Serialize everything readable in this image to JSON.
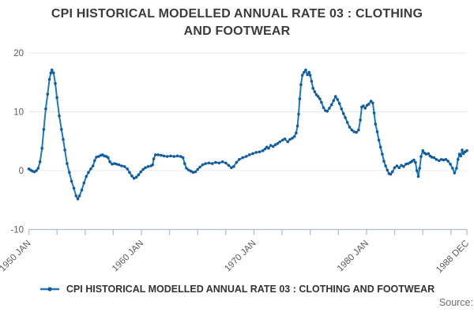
{
  "page": {
    "title": "CPI HISTORICAL MODELLED ANNUAL RATE 03 : CLOTHING AND FOOTWEAR",
    "source_label": "Source:"
  },
  "legend": {
    "label": "CPI HISTORICAL MODELLED ANNUAL RATE 03 : CLOTHING AND FOOTWEAR"
  },
  "colors": {
    "line": "#1e79b9",
    "marker": "#135c99",
    "grid": "#e8e8e8",
    "axis": "#b0bdd6",
    "tick_text": "#595959",
    "title_text": "#3b3b3b"
  },
  "chart_data": {
    "type": "line",
    "title": "CPI HISTORICAL MODELLED ANNUAL RATE 03 : CLOTHING AND FOOTWEAR",
    "xlabel": "",
    "ylabel": "",
    "unit": "percent, annual rate",
    "x_range": [
      1950.0,
      1988.92
    ],
    "ylim": [
      -10,
      20
    ],
    "y_ticks": [
      -10,
      0,
      10,
      20
    ],
    "y_gridlines": [
      0,
      10,
      20
    ],
    "x_tick_interval_years": 2.5,
    "x_tick_labels": [
      {
        "t": 1950.0,
        "label": "1950 JAN"
      },
      {
        "t": 1960.0,
        "label": "1960 JAN"
      },
      {
        "t": 1970.0,
        "label": "1970 JAN"
      },
      {
        "t": 1980.0,
        "label": "1980 JAN"
      },
      {
        "t": 1988.92,
        "label": "1988 DEC"
      }
    ],
    "legend_position": "bottom",
    "grid": true,
    "series": [
      {
        "name": "CPI HISTORICAL MODELLED ANNUAL RATE 03 : CLOTHING AND FOOTWEAR",
        "points": [
          [
            1950.0,
            0.3
          ],
          [
            1950.17,
            0.1
          ],
          [
            1950.33,
            -0.1
          ],
          [
            1950.5,
            -0.2
          ],
          [
            1950.67,
            0.0
          ],
          [
            1950.83,
            0.4
          ],
          [
            1951.0,
            1.5
          ],
          [
            1951.17,
            3.8
          ],
          [
            1951.33,
            7.0
          ],
          [
            1951.5,
            10.5
          ],
          [
            1951.67,
            13.0
          ],
          [
            1951.83,
            15.5
          ],
          [
            1951.95,
            16.6
          ],
          [
            1952.05,
            17.1
          ],
          [
            1952.2,
            16.6
          ],
          [
            1952.35,
            14.8
          ],
          [
            1952.5,
            12.4
          ],
          [
            1952.7,
            9.3
          ],
          [
            1952.9,
            7.0
          ],
          [
            1953.05,
            5.3
          ],
          [
            1953.2,
            3.5
          ],
          [
            1953.4,
            1.2
          ],
          [
            1953.6,
            -0.3
          ],
          [
            1953.8,
            -1.8
          ],
          [
            1954.0,
            -3.0
          ],
          [
            1954.2,
            -4.3
          ],
          [
            1954.35,
            -4.8
          ],
          [
            1954.5,
            -4.3
          ],
          [
            1954.7,
            -3.3
          ],
          [
            1954.9,
            -2.1
          ],
          [
            1955.1,
            -1.0
          ],
          [
            1955.3,
            -0.3
          ],
          [
            1955.5,
            0.3
          ],
          [
            1955.7,
            0.8
          ],
          [
            1955.85,
            1.7
          ],
          [
            1956.0,
            2.3
          ],
          [
            1956.2,
            2.4
          ],
          [
            1956.4,
            2.6
          ],
          [
            1956.55,
            2.7
          ],
          [
            1956.7,
            2.5
          ],
          [
            1956.9,
            2.4
          ],
          [
            1957.05,
            2.2
          ],
          [
            1957.2,
            1.5
          ],
          [
            1957.4,
            1.1
          ],
          [
            1957.6,
            1.2
          ],
          [
            1957.8,
            1.1
          ],
          [
            1958.0,
            1.0
          ],
          [
            1958.25,
            0.8
          ],
          [
            1958.5,
            0.7
          ],
          [
            1958.75,
            0.3
          ],
          [
            1958.95,
            -0.3
          ],
          [
            1959.15,
            -0.9
          ],
          [
            1959.35,
            -1.3
          ],
          [
            1959.55,
            -1.1
          ],
          [
            1959.75,
            -0.7
          ],
          [
            1959.95,
            -0.2
          ],
          [
            1960.15,
            0.2
          ],
          [
            1960.35,
            0.5
          ],
          [
            1960.6,
            0.7
          ],
          [
            1960.85,
            0.8
          ],
          [
            1961.0,
            1.0
          ],
          [
            1961.1,
            2.0
          ],
          [
            1961.25,
            2.7
          ],
          [
            1961.5,
            2.7
          ],
          [
            1961.75,
            2.6
          ],
          [
            1962.0,
            2.5
          ],
          [
            1962.3,
            2.4
          ],
          [
            1962.6,
            2.5
          ],
          [
            1962.9,
            2.4
          ],
          [
            1963.2,
            2.5
          ],
          [
            1963.5,
            2.4
          ],
          [
            1963.7,
            2.2
          ],
          [
            1963.85,
            1.2
          ],
          [
            1964.0,
            0.4
          ],
          [
            1964.2,
            0.1
          ],
          [
            1964.4,
            -0.1
          ],
          [
            1964.6,
            -0.3
          ],
          [
            1964.8,
            -0.2
          ],
          [
            1965.0,
            0.2
          ],
          [
            1965.2,
            0.6
          ],
          [
            1965.45,
            1.0
          ],
          [
            1965.7,
            1.2
          ],
          [
            1966.0,
            1.3
          ],
          [
            1966.3,
            1.2
          ],
          [
            1966.6,
            1.4
          ],
          [
            1966.9,
            1.3
          ],
          [
            1967.2,
            1.5
          ],
          [
            1967.5,
            1.3
          ],
          [
            1967.75,
            0.9
          ],
          [
            1968.0,
            0.5
          ],
          [
            1968.2,
            0.7
          ],
          [
            1968.45,
            1.4
          ],
          [
            1968.7,
            1.9
          ],
          [
            1969.0,
            2.2
          ],
          [
            1969.3,
            2.4
          ],
          [
            1969.6,
            2.7
          ],
          [
            1969.9,
            2.9
          ],
          [
            1970.2,
            3.1
          ],
          [
            1970.5,
            3.2
          ],
          [
            1970.8,
            3.4
          ],
          [
            1971.0,
            3.7
          ],
          [
            1971.15,
            4.0
          ],
          [
            1971.3,
            3.8
          ],
          [
            1971.5,
            4.3
          ],
          [
            1971.7,
            4.1
          ],
          [
            1971.9,
            4.4
          ],
          [
            1972.1,
            4.6
          ],
          [
            1972.3,
            4.9
          ],
          [
            1972.55,
            5.2
          ],
          [
            1972.75,
            5.4
          ],
          [
            1973.0,
            4.9
          ],
          [
            1973.2,
            5.3
          ],
          [
            1973.4,
            5.5
          ],
          [
            1973.6,
            5.8
          ],
          [
            1973.75,
            6.4
          ],
          [
            1973.87,
            7.6
          ],
          [
            1973.97,
            9.6
          ],
          [
            1974.07,
            12.2
          ],
          [
            1974.17,
            14.6
          ],
          [
            1974.3,
            16.2
          ],
          [
            1974.45,
            16.7
          ],
          [
            1974.6,
            17.1
          ],
          [
            1974.75,
            16.3
          ],
          [
            1974.9,
            16.7
          ],
          [
            1975.0,
            16.2
          ],
          [
            1975.12,
            15.2
          ],
          [
            1975.25,
            14.0
          ],
          [
            1975.4,
            13.4
          ],
          [
            1975.55,
            12.9
          ],
          [
            1975.7,
            12.6
          ],
          [
            1975.85,
            12.2
          ],
          [
            1976.0,
            11.6
          ],
          [
            1976.18,
            10.7
          ],
          [
            1976.35,
            10.2
          ],
          [
            1976.52,
            10.1
          ],
          [
            1976.7,
            10.6
          ],
          [
            1976.9,
            11.2
          ],
          [
            1977.08,
            11.9
          ],
          [
            1977.25,
            12.6
          ],
          [
            1977.42,
            12.1
          ],
          [
            1977.6,
            11.4
          ],
          [
            1977.78,
            10.5
          ],
          [
            1977.95,
            9.7
          ],
          [
            1978.12,
            9.0
          ],
          [
            1978.3,
            8.2
          ],
          [
            1978.5,
            7.4
          ],
          [
            1978.7,
            6.9
          ],
          [
            1978.9,
            6.6
          ],
          [
            1979.1,
            6.5
          ],
          [
            1979.3,
            6.9
          ],
          [
            1979.45,
            8.6
          ],
          [
            1979.58,
            10.8
          ],
          [
            1979.72,
            11.0
          ],
          [
            1979.88,
            10.6
          ],
          [
            1980.05,
            11.1
          ],
          [
            1980.2,
            11.3
          ],
          [
            1980.4,
            11.8
          ],
          [
            1980.55,
            11.5
          ],
          [
            1980.68,
            9.8
          ],
          [
            1980.8,
            7.9
          ],
          [
            1980.95,
            6.6
          ],
          [
            1981.1,
            5.2
          ],
          [
            1981.25,
            4.0
          ],
          [
            1981.4,
            2.8
          ],
          [
            1981.55,
            1.6
          ],
          [
            1981.7,
            0.8
          ],
          [
            1981.85,
            0.1
          ],
          [
            1982.0,
            -0.5
          ],
          [
            1982.15,
            -0.6
          ],
          [
            1982.3,
            -0.2
          ],
          [
            1982.5,
            0.5
          ],
          [
            1982.7,
            0.8
          ],
          [
            1982.9,
            0.5
          ],
          [
            1983.1,
            0.9
          ],
          [
            1983.3,
            0.7
          ],
          [
            1983.5,
            1.1
          ],
          [
            1983.7,
            1.2
          ],
          [
            1983.9,
            1.4
          ],
          [
            1984.05,
            1.6
          ],
          [
            1984.2,
            1.8
          ],
          [
            1984.35,
            1.4
          ],
          [
            1984.48,
            0.0
          ],
          [
            1984.6,
            -1.0
          ],
          [
            1984.72,
            0.4
          ],
          [
            1984.85,
            2.4
          ],
          [
            1985.0,
            3.4
          ],
          [
            1985.15,
            3.0
          ],
          [
            1985.3,
            2.8
          ],
          [
            1985.5,
            2.9
          ],
          [
            1985.65,
            2.5
          ],
          [
            1985.8,
            2.3
          ],
          [
            1986.0,
            2.2
          ],
          [
            1986.2,
            1.9
          ],
          [
            1986.45,
            1.7
          ],
          [
            1986.65,
            1.9
          ],
          [
            1986.85,
            1.8
          ],
          [
            1987.05,
            1.9
          ],
          [
            1987.25,
            1.6
          ],
          [
            1987.45,
            1.1
          ],
          [
            1987.65,
            0.4
          ],
          [
            1987.82,
            -0.4
          ],
          [
            1988.0,
            0.4
          ],
          [
            1988.13,
            1.9
          ],
          [
            1988.25,
            2.8
          ],
          [
            1988.38,
            2.5
          ],
          [
            1988.5,
            3.5
          ],
          [
            1988.62,
            2.9
          ],
          [
            1988.75,
            3.2
          ],
          [
            1988.92,
            3.4
          ]
        ]
      }
    ]
  }
}
